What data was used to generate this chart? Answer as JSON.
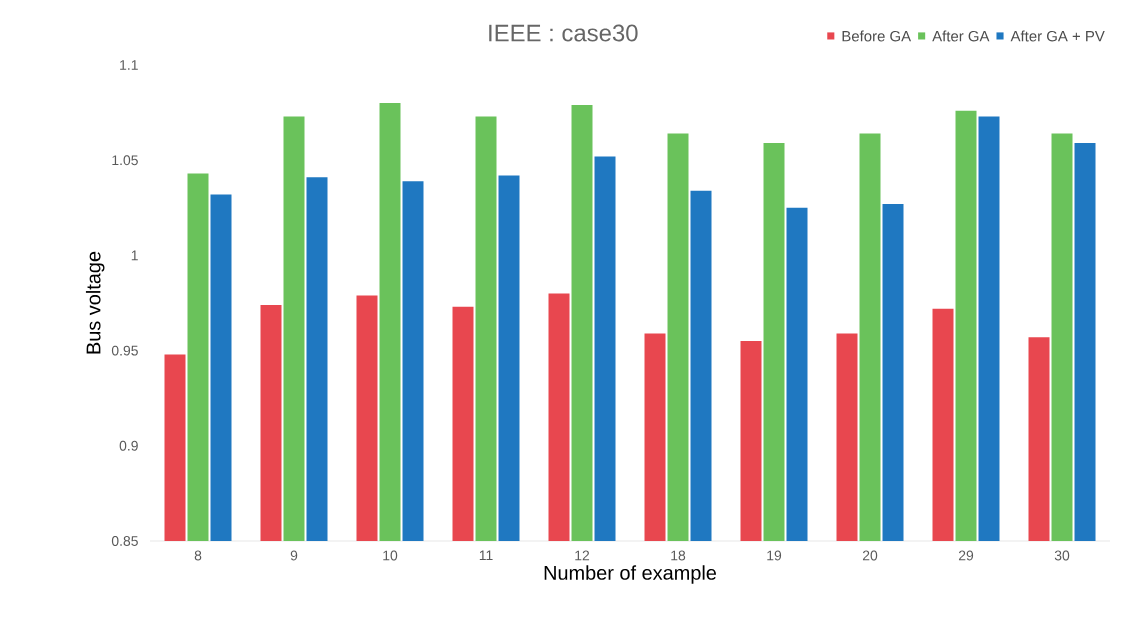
{
  "chart_data": {
    "type": "bar",
    "title": "IEEE : case30",
    "xlabel": "Number of example",
    "ylabel": "Bus voltage",
    "categories": [
      "8",
      "9",
      "10",
      "11",
      "12",
      "18",
      "19",
      "20",
      "29",
      "30"
    ],
    "series": [
      {
        "name": "Before GA",
        "color": "#e8474f",
        "values": [
          0.948,
          0.974,
          0.979,
          0.973,
          0.98,
          0.959,
          0.955,
          0.959,
          0.972,
          0.957
        ]
      },
      {
        "name": "After GA",
        "color": "#6ac25b",
        "values": [
          1.043,
          1.073,
          1.08,
          1.073,
          1.079,
          1.064,
          1.059,
          1.064,
          1.076,
          1.064
        ]
      },
      {
        "name": "After GA + PV",
        "color": "#1f78c1",
        "values": [
          1.032,
          1.041,
          1.039,
          1.042,
          1.052,
          1.034,
          1.025,
          1.027,
          1.073,
          1.059
        ]
      }
    ],
    "ylim": [
      0.85,
      1.1
    ],
    "yticks": [
      {
        "value": 0.85,
        "label": "0.85"
      },
      {
        "value": 0.9,
        "label": "0.9"
      },
      {
        "value": 0.95,
        "label": "0.95"
      },
      {
        "value": 1.0,
        "label": "1"
      },
      {
        "value": 1.05,
        "label": "1.05"
      },
      {
        "value": 1.1,
        "label": "1.1"
      }
    ],
    "legend": "top right"
  }
}
